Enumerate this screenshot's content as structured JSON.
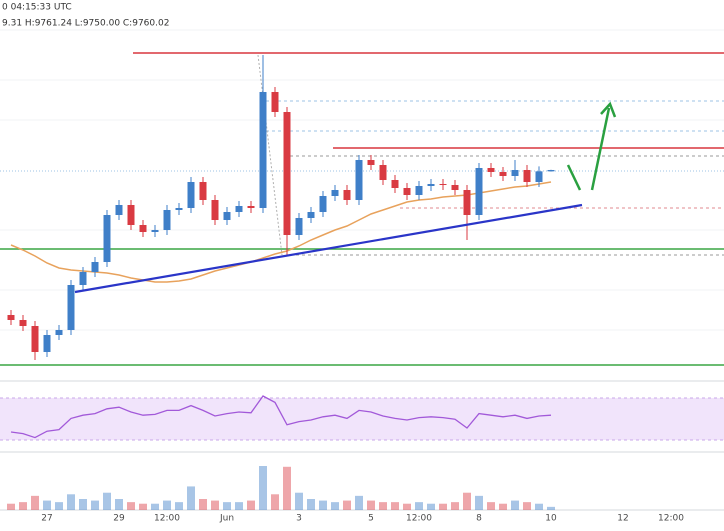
{
  "chart_data": {
    "type": "candlestick",
    "title": "0 04:15:33 UTC",
    "subtitle": "9.31 H:9761.24 L:9750.00 C:9760.02",
    "up_color": "#3f7fc8",
    "down_color": "#d93a42",
    "ylim": [
      8560,
      10780
    ],
    "categories": [
      null,
      null,
      null,
      "27",
      null,
      null,
      null,
      null,
      null,
      "29",
      null,
      null,
      null,
      "12:00",
      null,
      null,
      null,
      null,
      "Jun",
      null,
      null,
      null,
      null,
      null,
      "3",
      null,
      null,
      null,
      null,
      null,
      "5",
      null,
      null,
      null,
      "12:00",
      null,
      null,
      null,
      null,
      "8",
      null,
      null,
      null,
      null,
      null,
      "10",
      null,
      null,
      null,
      null,
      null,
      "12",
      null,
      null,
      null,
      "12:00"
    ],
    "open": [
      8890,
      8860,
      8824,
      8668,
      8770,
      8800,
      9070,
      9148,
      9208,
      9490,
      9550,
      9430,
      9388,
      9400,
      9520,
      9532,
      9688,
      9580,
      9460,
      9508,
      9544,
      9532,
      10228,
      10108,
      9370,
      9472,
      9508,
      9604,
      9640,
      9580,
      9820,
      9790,
      9700,
      9652,
      9610,
      9664,
      9676,
      9670,
      9640,
      9490,
      9772,
      9748,
      9724,
      9760,
      9688,
      9752,
      null,
      null,
      null,
      null,
      null,
      null,
      null,
      null,
      null,
      null
    ],
    "high": [
      8920,
      8890,
      8854,
      8800,
      8830,
      9100,
      9178,
      9238,
      9520,
      9580,
      9580,
      9460,
      9430,
      9550,
      9562,
      9718,
      9718,
      9610,
      9538,
      9574,
      9574,
      10450,
      10258,
      10138,
      9502,
      9538,
      9634,
      9670,
      9670,
      9850,
      9850,
      9820,
      9730,
      9682,
      9694,
      9706,
      9706,
      9700,
      9670,
      9802,
      9802,
      9778,
      9820,
      9790,
      9782,
      9761.24,
      null,
      null,
      null,
      null,
      null,
      null,
      null,
      null,
      null,
      null
    ],
    "low": [
      8830,
      8794,
      8620,
      8638,
      8740,
      8770,
      9040,
      9118,
      9178,
      9460,
      9400,
      9358,
      9358,
      9370,
      9490,
      9502,
      9550,
      9430,
      9430,
      9478,
      9502,
      9502,
      10078,
      9250,
      9340,
      9442,
      9478,
      9574,
      9550,
      9550,
      9760,
      9670,
      9622,
      9580,
      9580,
      9634,
      9640,
      9610,
      9340,
      9460,
      9718,
      9694,
      9694,
      9658,
      9658,
      9750,
      null,
      null,
      null,
      null,
      null,
      null,
      null,
      null,
      null,
      null
    ],
    "close": [
      8860,
      8824,
      8668,
      8770,
      8800,
      9070,
      9148,
      9208,
      9490,
      9550,
      9430,
      9388,
      9400,
      9520,
      9532,
      9688,
      9580,
      9460,
      9508,
      9544,
      9532,
      10228,
      10108,
      9370,
      9472,
      9508,
      9604,
      9640,
      9580,
      9820,
      9790,
      9700,
      9652,
      9610,
      9664,
      9676,
      9670,
      9640,
      9490,
      9772,
      9748,
      9724,
      9760,
      9688,
      9752,
      9760.02,
      null,
      null,
      null,
      null,
      null,
      null,
      null,
      null,
      null,
      null
    ],
    "ma": {
      "color": "#e8a25c",
      "values": [
        9310,
        9280,
        9244,
        9202,
        9172,
        9160,
        9154,
        9148,
        9142,
        9130,
        9112,
        9100,
        9088,
        9088,
        9094,
        9106,
        9130,
        9154,
        9172,
        9190,
        9208,
        9232,
        9256,
        9274,
        9304,
        9340,
        9370,
        9400,
        9424,
        9460,
        9496,
        9520,
        9544,
        9568,
        9580,
        9586,
        9598,
        9604,
        9610,
        9622,
        9634,
        9646,
        9658,
        9664,
        9676,
        9688,
        null,
        null,
        null,
        null,
        null,
        null,
        null,
        null,
        null,
        null
      ]
    },
    "rsi": {
      "color": "#a259d9",
      "ylim": [
        0,
        100
      ],
      "values": [
        35,
        33,
        28,
        36,
        38,
        52,
        56,
        58,
        64,
        66,
        60,
        56,
        57,
        62,
        62,
        68,
        62,
        55,
        58,
        60,
        59,
        80,
        72,
        44,
        48,
        50,
        54,
        56,
        52,
        62,
        60,
        55,
        52,
        50,
        53,
        54,
        53,
        51,
        40,
        58,
        56,
        54,
        56,
        52,
        55,
        56,
        null,
        null,
        null,
        null,
        null,
        null,
        null,
        null,
        null,
        null
      ]
    },
    "volume": {
      "ylim": [
        0,
        70
      ],
      "values": [
        8,
        10,
        18,
        12,
        10,
        20,
        14,
        12,
        22,
        14,
        10,
        8,
        8,
        12,
        10,
        30,
        14,
        12,
        10,
        10,
        12,
        56,
        20,
        55,
        22,
        14,
        12,
        10,
        12,
        18,
        12,
        10,
        10,
        8,
        10,
        8,
        8,
        10,
        22,
        18,
        10,
        8,
        12,
        10,
        8,
        4,
        null,
        null,
        null,
        null,
        null,
        null,
        null,
        null,
        null,
        null
      ]
    }
  }
}
